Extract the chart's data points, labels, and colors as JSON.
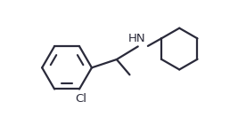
{
  "background_color": "#ffffff",
  "line_color": "#2a2a3a",
  "line_width": 1.6,
  "label_Cl": "Cl",
  "label_HN": "HN",
  "label_fontsize": 9.5,
  "figsize": [
    2.67,
    1.5
  ],
  "dpi": 100,
  "xlim": [
    0.0,
    10.0
  ],
  "ylim": [
    0.5,
    6.0
  ]
}
